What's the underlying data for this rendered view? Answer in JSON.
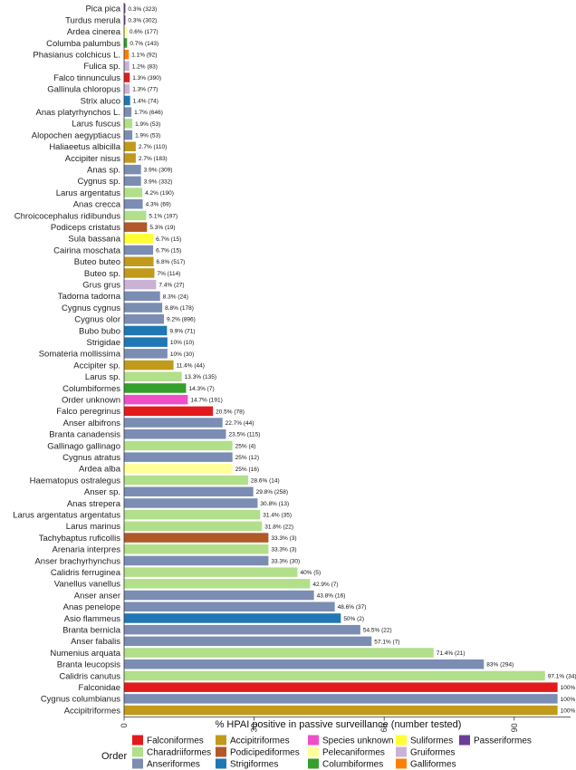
{
  "chart_data": {
    "type": "bar",
    "orientation": "horizontal",
    "title": "",
    "xlabel": "% HPAI positive in passive surveillance (number tested)",
    "ylabel": "",
    "xlim": [
      0,
      103
    ],
    "xticks": [
      0,
      30,
      60,
      90
    ],
    "xtick_labels": [
      "0",
      "30",
      "60",
      "90"
    ],
    "grid": false,
    "legend_title": "Order",
    "legend_position": "bottom",
    "legend": [
      {
        "order": "Falconiformes",
        "color": "#e31a1c"
      },
      {
        "order": "Charadriiformes",
        "color": "#b2df8a"
      },
      {
        "order": "Anseriformes",
        "color": "#7b8db3"
      },
      {
        "order": "Accipitriformes",
        "color": "#c19a1b"
      },
      {
        "order": "Podicipediformes",
        "color": "#b15928"
      },
      {
        "order": "Strigiformes",
        "color": "#1f78b4"
      },
      {
        "order": "Species unknown",
        "color": "#f04ec8"
      },
      {
        "order": "Pelecaniformes",
        "color": "#ffff99"
      },
      {
        "order": "Columbiformes",
        "color": "#33a02c"
      },
      {
        "order": "Suliformes",
        "color": "#ffff33"
      },
      {
        "order": "Gruiformes",
        "color": "#cab2d6"
      },
      {
        "order": "Galliformes",
        "color": "#ff7f00"
      },
      {
        "order": "Passeriformes",
        "color": "#6a3d9a"
      }
    ],
    "bars": [
      {
        "category": "Pica pica",
        "value": 0.3,
        "label": "0.3% (323)",
        "order": "Passeriformes"
      },
      {
        "category": "Turdus merula",
        "value": 0.3,
        "label": "0.3% (302)",
        "order": "Passeriformes"
      },
      {
        "category": "Ardea cinerea",
        "value": 0.6,
        "label": "0.6% (177)",
        "order": "Pelecaniformes"
      },
      {
        "category": "Columba palumbus",
        "value": 0.7,
        "label": "0.7% (143)",
        "order": "Columbiformes"
      },
      {
        "category": "Phasianus colchicus L.",
        "value": 1.1,
        "label": "1.1% (92)",
        "order": "Galliformes"
      },
      {
        "category": "Fulica sp.",
        "value": 1.2,
        "label": "1.2% (83)",
        "order": "Gruiformes"
      },
      {
        "category": "Falco tinnunculus",
        "value": 1.3,
        "label": "1.3% (390)",
        "order": "Falconiformes"
      },
      {
        "category": "Gallinula chloropus",
        "value": 1.3,
        "label": "1.3% (77)",
        "order": "Gruiformes"
      },
      {
        "category": "Strix aluco",
        "value": 1.4,
        "label": "1.4% (74)",
        "order": "Strigiformes"
      },
      {
        "category": "Anas platyrhynchos L.",
        "value": 1.7,
        "label": "1.7% (646)",
        "order": "Anseriformes"
      },
      {
        "category": "Larus fuscus",
        "value": 1.9,
        "label": "1.9% (53)",
        "order": "Charadriiformes"
      },
      {
        "category": "Alopochen aegyptiacus",
        "value": 1.9,
        "label": "1.9% (53)",
        "order": "Anseriformes"
      },
      {
        "category": "Haliaeetus albicilla",
        "value": 2.7,
        "label": "2.7% (110)",
        "order": "Accipitriformes"
      },
      {
        "category": "Accipiter nisus",
        "value": 2.7,
        "label": "2.7% (183)",
        "order": "Accipitriformes"
      },
      {
        "category": "Anas sp.",
        "value": 3.9,
        "label": "3.9% (309)",
        "order": "Anseriformes"
      },
      {
        "category": "Cygnus sp.",
        "value": 3.9,
        "label": "3.9% (332)",
        "order": "Anseriformes"
      },
      {
        "category": "Larus argentatus",
        "value": 4.2,
        "label": "4.2% (190)",
        "order": "Charadriiformes"
      },
      {
        "category": "Anas crecca",
        "value": 4.3,
        "label": "4.3% (69)",
        "order": "Anseriformes"
      },
      {
        "category": "Chroicocephalus ridibundus",
        "value": 5.1,
        "label": "5.1% (197)",
        "order": "Charadriiformes"
      },
      {
        "category": "Podiceps cristatus",
        "value": 5.3,
        "label": "5.3% (19)",
        "order": "Podicipediformes"
      },
      {
        "category": "Sula bassana",
        "value": 6.7,
        "label": "6.7% (15)",
        "order": "Suliformes"
      },
      {
        "category": "Cairina moschata",
        "value": 6.7,
        "label": "6.7% (15)",
        "order": "Anseriformes"
      },
      {
        "category": "Buteo buteo",
        "value": 6.8,
        "label": "6.8% (517)",
        "order": "Accipitriformes"
      },
      {
        "category": "Buteo sp.",
        "value": 7,
        "label": "7% (114)",
        "order": "Accipitriformes"
      },
      {
        "category": "Grus grus",
        "value": 7.4,
        "label": "7.4% (27)",
        "order": "Gruiformes"
      },
      {
        "category": "Tadorna tadorna",
        "value": 8.3,
        "label": "8.3% (24)",
        "order": "Anseriformes"
      },
      {
        "category": "Cygnus cygnus",
        "value": 8.8,
        "label": "8.8% (178)",
        "order": "Anseriformes"
      },
      {
        "category": "Cygnus olor",
        "value": 9.2,
        "label": "9.2% (896)",
        "order": "Anseriformes"
      },
      {
        "category": "Bubo bubo",
        "value": 9.9,
        "label": "9.9% (71)",
        "order": "Strigiformes"
      },
      {
        "category": "Strigidae",
        "value": 10,
        "label": "10% (10)",
        "order": "Strigiformes"
      },
      {
        "category": "Somateria mollissima",
        "value": 10,
        "label": "10% (30)",
        "order": "Anseriformes"
      },
      {
        "category": "Accipiter sp.",
        "value": 11.4,
        "label": "11.4% (44)",
        "order": "Accipitriformes"
      },
      {
        "category": "Larus sp.",
        "value": 13.3,
        "label": "13.3% (135)",
        "order": "Charadriiformes"
      },
      {
        "category": "Columbiformes",
        "value": 14.3,
        "label": "14.3% (7)",
        "order": "Columbiformes"
      },
      {
        "category": "Order unknown",
        "value": 14.7,
        "label": "14.7% (191)",
        "order": "Species unknown"
      },
      {
        "category": "Falco peregrinus",
        "value": 20.5,
        "label": "20.5% (78)",
        "order": "Falconiformes"
      },
      {
        "category": "Anser albifrons",
        "value": 22.7,
        "label": "22.7% (44)",
        "order": "Anseriformes"
      },
      {
        "category": "Branta canadensis",
        "value": 23.5,
        "label": "23.5% (115)",
        "order": "Anseriformes"
      },
      {
        "category": "Gallinago gallinago",
        "value": 25,
        "label": "25% (4)",
        "order": "Charadriiformes"
      },
      {
        "category": "Cygnus atratus",
        "value": 25,
        "label": "25% (12)",
        "order": "Anseriformes"
      },
      {
        "category": "Ardea alba",
        "value": 25,
        "label": "25% (16)",
        "order": "Pelecaniformes"
      },
      {
        "category": "Haematopus ostralegus",
        "value": 28.6,
        "label": "28.6% (14)",
        "order": "Charadriiformes"
      },
      {
        "category": "Anser sp.",
        "value": 29.8,
        "label": "29.8% (258)",
        "order": "Anseriformes"
      },
      {
        "category": "Anas strepera",
        "value": 30.8,
        "label": "30.8% (13)",
        "order": "Anseriformes"
      },
      {
        "category": "Larus argentatus argentatus",
        "value": 31.4,
        "label": "31.4% (35)",
        "order": "Charadriiformes"
      },
      {
        "category": "Larus marinus",
        "value": 31.8,
        "label": "31.8% (22)",
        "order": "Charadriiformes"
      },
      {
        "category": "Tachybaptus ruficollis",
        "value": 33.3,
        "label": "33.3% (3)",
        "order": "Podicipediformes"
      },
      {
        "category": "Arenaria interpres",
        "value": 33.3,
        "label": "33.3% (3)",
        "order": "Charadriiformes"
      },
      {
        "category": "Anser brachyrhynchus",
        "value": 33.3,
        "label": "33.3% (30)",
        "order": "Anseriformes"
      },
      {
        "category": "Calidris ferruginea",
        "value": 40,
        "label": "40% (5)",
        "order": "Charadriiformes"
      },
      {
        "category": "Vanellus vanellus",
        "value": 42.9,
        "label": "42.9% (7)",
        "order": "Charadriiformes"
      },
      {
        "category": "Anser anser",
        "value": 43.8,
        "label": "43.8% (16)",
        "order": "Anseriformes"
      },
      {
        "category": "Anas penelope",
        "value": 48.6,
        "label": "48.6% (37)",
        "order": "Anseriformes"
      },
      {
        "category": "Asio flammeus",
        "value": 50,
        "label": "50% (2)",
        "order": "Strigiformes"
      },
      {
        "category": "Branta bernicla",
        "value": 54.5,
        "label": "54.5% (22)",
        "order": "Anseriformes"
      },
      {
        "category": "Anser fabalis",
        "value": 57.1,
        "label": "57.1% (7)",
        "order": "Anseriformes"
      },
      {
        "category": "Numenius arquata",
        "value": 71.4,
        "label": "71.4% (21)",
        "order": "Charadriiformes"
      },
      {
        "category": "Branta leucopsis",
        "value": 83,
        "label": "83% (294)",
        "order": "Anseriformes"
      },
      {
        "category": "Calidris canutus",
        "value": 97.1,
        "label": "97.1% (34)",
        "order": "Charadriiformes"
      },
      {
        "category": "Falconidae",
        "value": 100,
        "label": "100% (1)",
        "order": "Falconiformes"
      },
      {
        "category": "Cygnus columbianus",
        "value": 100,
        "label": "100% (1)",
        "order": "Anseriformes"
      },
      {
        "category": "Accipitriformes",
        "value": 100,
        "label": "100% (1)",
        "order": "Accipitriformes"
      }
    ]
  }
}
